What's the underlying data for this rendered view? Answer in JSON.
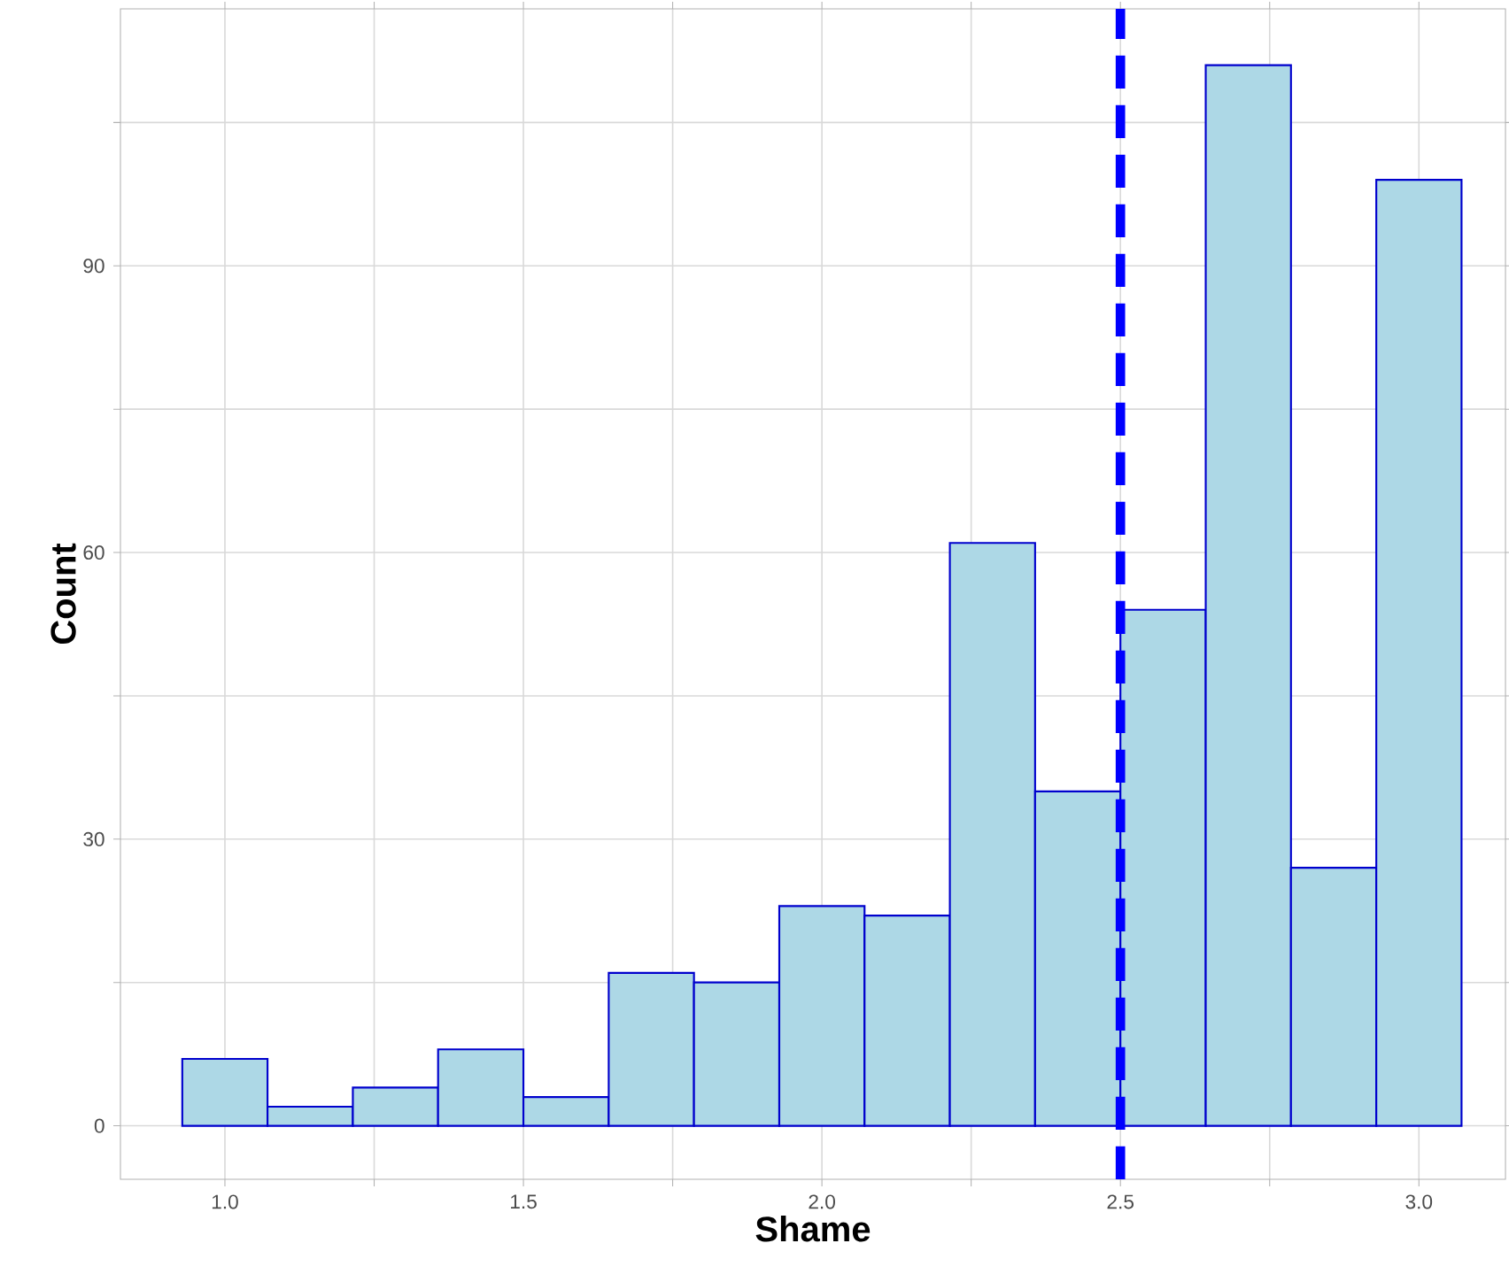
{
  "chart_data": {
    "type": "histogram",
    "xlabel": "Shame",
    "ylabel": "Count",
    "bins": [
      0.9286,
      1.0714,
      1.2143,
      1.3571,
      1.5,
      1.6429,
      1.7857,
      1.9286,
      2.0714,
      2.2143,
      2.3571,
      2.5,
      2.6429,
      2.7857,
      2.9286,
      3.0714
    ],
    "values": [
      7,
      2,
      4,
      8,
      3,
      16,
      15,
      23,
      22,
      61,
      35,
      54,
      111,
      27,
      99
    ],
    "color": "#add8e6",
    "xlim": [
      0.825,
      3.145
    ],
    "ylim": [
      -5.6,
      116.9
    ],
    "xticks": [
      {
        "value": 1,
        "label": "1.0"
      },
      {
        "value": 1.25,
        "label": null
      },
      1.5,
      {
        "value": 1.75,
        "label": null
      },
      {
        "value": 2,
        "label": "2.0"
      },
      {
        "value": 2.25,
        "label": null
      },
      2.5,
      {
        "value": 2.75,
        "label": null
      },
      {
        "value": 3,
        "label": "3.0"
      }
    ],
    "yticks": [
      0,
      {
        "value": 15,
        "label": null
      },
      30,
      {
        "value": 45,
        "label": null
      },
      60,
      {
        "value": 75,
        "label": null
      },
      90,
      {
        "value": 105,
        "label": null
      }
    ],
    "grid": true,
    "ref_lines": [
      {
        "axis": "x",
        "value": 2.5,
        "color": "#0000ff",
        "line_style": "dashed"
      }
    ]
  }
}
